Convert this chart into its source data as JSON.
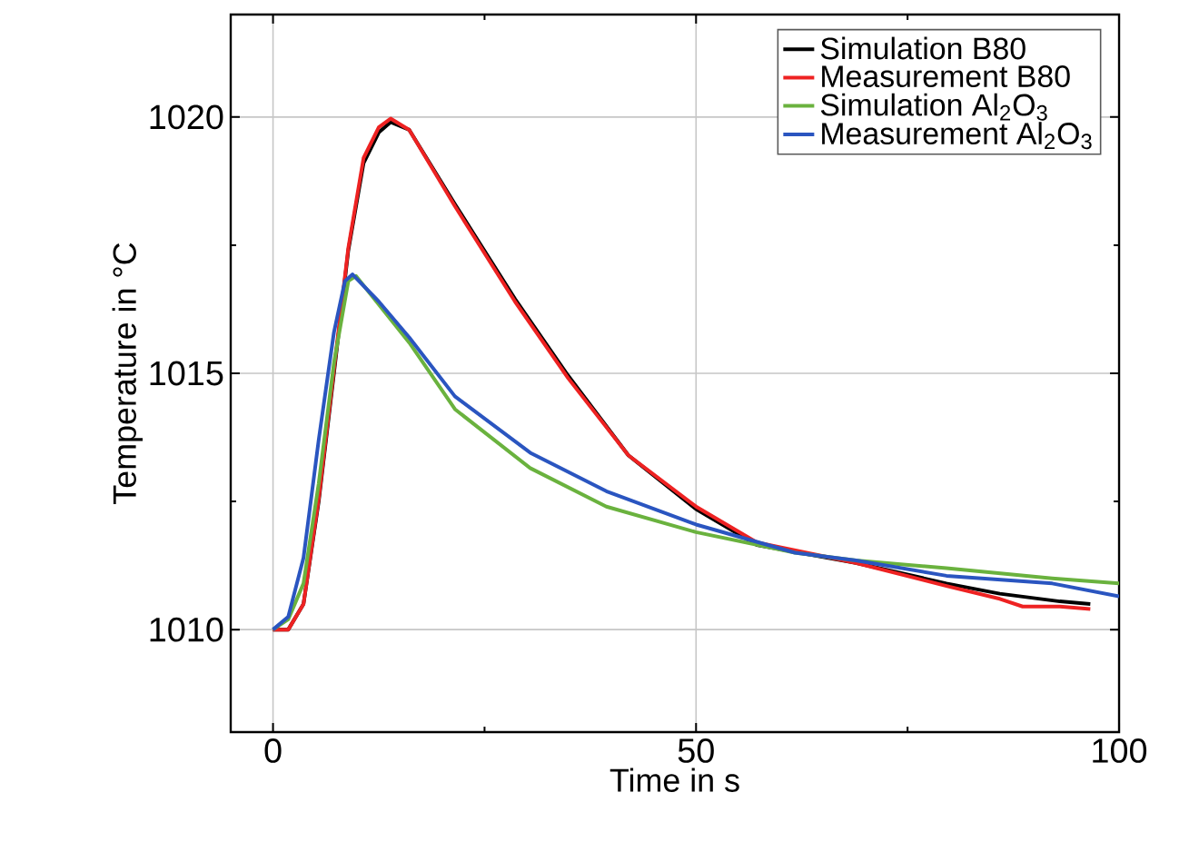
{
  "chart_data": {
    "type": "line",
    "xlabel": "Time in s",
    "ylabel": "Temperature in °C",
    "xlim": [
      -5,
      100
    ],
    "ylim": [
      1008,
      1022
    ],
    "xticks": [
      0,
      50,
      100
    ],
    "yticks": [
      1010,
      1015,
      1020
    ],
    "grid": true,
    "legend": "top right",
    "marker": "none",
    "line_style": "solid",
    "series": [
      {
        "name": "Simulation B80",
        "color": "#000000",
        "x": [
          0,
          1.8,
          3.6,
          5.4,
          7.2,
          8.9,
          10.7,
          12.5,
          13.9,
          16.1,
          21.5,
          28.6,
          34.9,
          42,
          50,
          57.2,
          68.9,
          79.6,
          85.9,
          93,
          96.6
        ],
        "values": [
          1010,
          1010,
          1010.5,
          1012.5,
          1015,
          1017.4,
          1019.1,
          1019.7,
          1019.9,
          1019.75,
          1018.3,
          1016.45,
          1014.95,
          1013.4,
          1012.35,
          1011.65,
          1011.3,
          1010.9,
          1010.7,
          1010.55,
          1010.5
        ]
      },
      {
        "name": "Measurement B80",
        "color": "#ee2222",
        "x": [
          0,
          1.8,
          3.6,
          5.4,
          7.2,
          8.9,
          10.7,
          12.5,
          13.9,
          16.1,
          21.5,
          28.6,
          34.9,
          42,
          50,
          57.2,
          68.9,
          79.6,
          85.9,
          88.6,
          93,
          96.6
        ],
        "values": [
          1010,
          1010,
          1010.5,
          1012.55,
          1015.07,
          1017.45,
          1019.2,
          1019.8,
          1019.97,
          1019.75,
          1018.26,
          1016.4,
          1014.9,
          1013.4,
          1012.4,
          1011.7,
          1011.3,
          1010.85,
          1010.6,
          1010.45,
          1010.45,
          1010.4
        ]
      },
      {
        "name": "Simulation Al$_{2}$O$_{3}$",
        "color": "#6ab23e",
        "x": [
          0,
          1.8,
          3.6,
          5.4,
          7.2,
          8.9,
          9.8,
          16.1,
          21.5,
          30.4,
          39.4,
          50,
          61.7,
          68.9,
          79.6,
          92.1,
          100
        ],
        "values": [
          1010,
          1010.2,
          1010.9,
          1012.85,
          1015.2,
          1016.8,
          1016.9,
          1015.6,
          1014.3,
          1013.15,
          1012.4,
          1011.9,
          1011.5,
          1011.35,
          1011.2,
          1011,
          1010.9
        ]
      },
      {
        "name": "Measurement Al$_{2}$O$_{3}$",
        "color": "#2a55c0",
        "x": [
          0,
          1.8,
          3.6,
          5.4,
          7.2,
          8.5,
          9.4,
          12.5,
          16.1,
          21.5,
          30.4,
          39.4,
          50,
          61.7,
          68.9,
          79.6,
          92.1,
          100
        ],
        "values": [
          1010,
          1010.25,
          1011.4,
          1013.7,
          1015.8,
          1016.8,
          1016.93,
          1016.4,
          1015.7,
          1014.55,
          1013.45,
          1012.7,
          1012.05,
          1011.5,
          1011.35,
          1011.05,
          1010.9,
          1010.65
        ]
      }
    ]
  }
}
